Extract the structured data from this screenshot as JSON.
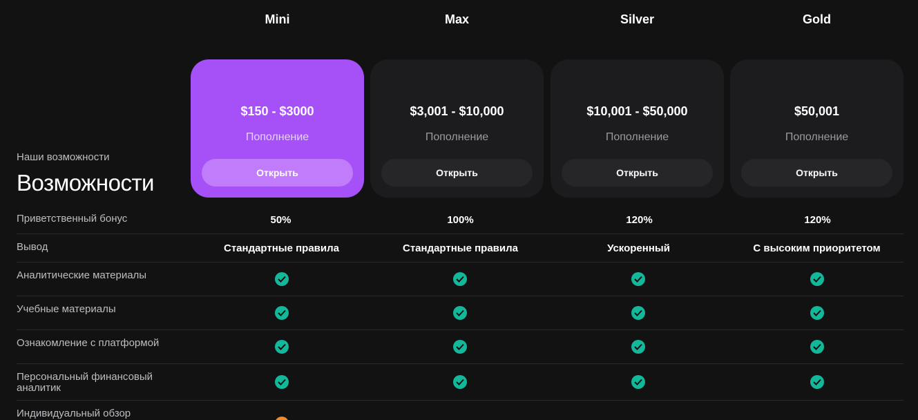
{
  "section": {
    "subtitle": "Наши возможности",
    "title": "Возможности"
  },
  "plans": [
    {
      "name": "Mini",
      "price": "$150 - $3000",
      "caption": "Пополнение",
      "button": "Открыть",
      "active": true
    },
    {
      "name": "Max",
      "price": "$3,001 - $10,000",
      "caption": "Пополнение",
      "button": "Открыть",
      "active": false
    },
    {
      "name": "Silver",
      "price": "$10,001 - $50,000",
      "caption": "Пополнение",
      "button": "Открыть",
      "active": false
    },
    {
      "name": "Gold",
      "price": "$50,001",
      "caption": "Пополнение",
      "button": "Открыть",
      "active": false
    }
  ],
  "features": [
    {
      "label": "Приветственный бонус",
      "values": [
        "50%",
        "100%",
        "120%",
        "120%"
      ]
    },
    {
      "label": "Вывод",
      "values": [
        "Стандартные правила",
        "Стандартные правила",
        "Ускоренный",
        "С высоким приоритетом"
      ]
    },
    {
      "label": "Аналитические материалы",
      "values": [
        "check",
        "check",
        "check",
        "check"
      ]
    },
    {
      "label": "Учебные материалы",
      "values": [
        "check",
        "check",
        "check",
        "check"
      ]
    },
    {
      "label": "Ознакомление с платформой",
      "values": [
        "check",
        "check",
        "check",
        "check"
      ]
    },
    {
      "label": "Персональный финансовый аналитик",
      "values": [
        "check",
        "check",
        "check",
        "check"
      ]
    },
    {
      "label": "Индивидуальный обзор",
      "values": [
        "partial",
        "",
        "",
        ""
      ]
    }
  ],
  "icons": {
    "check": "check-circle-icon",
    "partial": "orange-status-icon"
  },
  "colors": {
    "accent": "#a650f7",
    "accent_button": "#c07cfa",
    "check": "#13b89b",
    "partial": "#f08a2c",
    "background": "#121213",
    "card": "#1c1c1e"
  }
}
